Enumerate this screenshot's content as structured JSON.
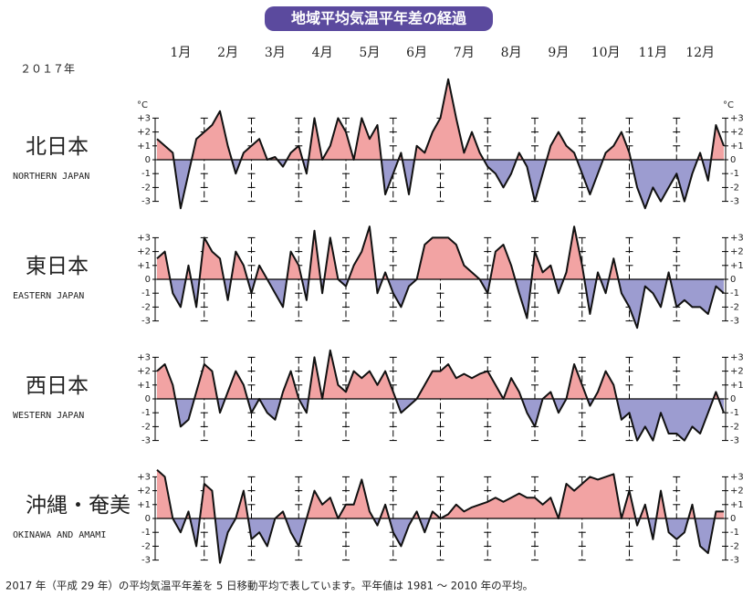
{
  "title": "地域平均気温平年差の経過",
  "year": "２０１７年",
  "months": [
    "1月",
    "2月",
    "3月",
    "4月",
    "5月",
    "6月",
    "7月",
    "8月",
    "9月",
    "10月",
    "11月",
    "12月"
  ],
  "unit": "°C",
  "note": "2017 年（平成 29 年）の平均気温平年差を 5 日移動平均で表しています。平年値は 1981 ～ 2010 年の平均。",
  "pos_color": "#f2a3a3",
  "neg_color": "#9c9cd0",
  "chart_data": [
    {
      "type": "area",
      "title": "北日本",
      "subtitle": "NORTHERN JAPAN",
      "values": [
        1.5,
        1,
        0.5,
        -3.5,
        -1,
        1.5,
        2,
        2.5,
        3.5,
        1,
        -1,
        0.5,
        1,
        1.5,
        0,
        0.2,
        -0.5,
        0.5,
        1,
        -1,
        3,
        0,
        1,
        3,
        2,
        0,
        3,
        1.5,
        2.5,
        -2.5,
        -1,
        0.5,
        -2.5,
        1,
        0.5,
        2,
        3,
        5.8,
        3,
        0.5,
        2,
        0.5,
        -0.5,
        -1,
        -2,
        -1,
        0.5,
        -0.5,
        -3,
        -1,
        1,
        2,
        1,
        0.5,
        -1,
        -2.5,
        -1,
        0.5,
        1,
        2,
        0.5,
        -2,
        -3.5,
        -2,
        -3,
        -2,
        -1,
        -3,
        -1,
        0.5,
        -1.5,
        2.5,
        1
      ],
      "ylim": [
        -3,
        3
      ],
      "yticks": [
        {
          "value": 3,
          "label": "+3"
        },
        {
          "value": 2,
          "label": "+2"
        },
        {
          "value": 1,
          "label": "+1"
        },
        0,
        -1,
        -2,
        -3
      ]
    },
    {
      "type": "area",
      "title": "東日本",
      "subtitle": "EASTERN JAPAN",
      "values": [
        1.5,
        2,
        -1,
        -2,
        1,
        -2,
        3,
        2,
        1.5,
        -1.5,
        2,
        1,
        -1,
        1,
        0,
        -1,
        -2,
        2,
        1,
        -1.5,
        3.5,
        -1,
        3,
        0,
        -0.5,
        1,
        2,
        3.8,
        -1,
        0.5,
        -1,
        -2,
        -0.5,
        0,
        2.5,
        3,
        3,
        3,
        2.5,
        1,
        0.5,
        0,
        -1,
        2,
        2.5,
        1,
        -1,
        -2.8,
        2,
        0.5,
        1,
        -1,
        0.5,
        3.8,
        1,
        -2.5,
        0.5,
        -1,
        1.5,
        -1,
        -2,
        -3.5,
        -0.5,
        -1,
        -2,
        0.5,
        -2,
        -1.5,
        -2,
        -2,
        -2.5,
        -0.5,
        -1
      ],
      "ylim": [
        -3,
        3
      ],
      "yticks": [
        {
          "value": 3,
          "label": "+3"
        },
        {
          "value": 2,
          "label": "+2"
        },
        {
          "value": 1,
          "label": "+1"
        },
        0,
        -1,
        -2,
        -3
      ]
    },
    {
      "type": "area",
      "title": "西日本",
      "subtitle": "WESTERN JAPAN",
      "values": [
        2,
        2.5,
        1,
        -2,
        -1.5,
        0.5,
        2.5,
        2,
        -1,
        0.5,
        2,
        1,
        -1,
        0,
        -1,
        -1.5,
        0.5,
        2,
        0,
        -1,
        3,
        0,
        3.5,
        1,
        0.5,
        2,
        1.5,
        2,
        1,
        2,
        0.5,
        -1,
        -0.5,
        0,
        1,
        2,
        2,
        2.5,
        1.5,
        1.8,
        1.5,
        1.8,
        2,
        1,
        0,
        1.5,
        0.5,
        -1,
        -2,
        0,
        0.5,
        -1,
        0,
        2.5,
        1,
        -0.5,
        0.5,
        2,
        1,
        -1.5,
        -1,
        -3,
        -2,
        -3,
        -1,
        -2.5,
        -2.5,
        -3,
        -2,
        -2.5,
        -1,
        0.5,
        -1
      ],
      "ylim": [
        -3,
        3
      ],
      "yticks": [
        {
          "value": 3,
          "label": "+3"
        },
        {
          "value": 2,
          "label": "+2"
        },
        {
          "value": 1,
          "label": "+1"
        },
        0,
        -1,
        -2,
        -3
      ]
    },
    {
      "type": "area",
      "title": "沖縄・奄美",
      "subtitle": "OKINAWA AND AMAMI",
      "values": [
        3.5,
        3,
        0,
        -1,
        0.5,
        -2,
        2.5,
        2,
        -3.2,
        -1,
        0,
        2,
        -1.5,
        -1,
        -2,
        0,
        0.5,
        -1,
        -2,
        0,
        2,
        1,
        1.5,
        0,
        1,
        1,
        2.8,
        0.5,
        -0.5,
        1,
        -1,
        -2,
        -0.5,
        0.5,
        -1,
        0.5,
        0,
        0.3,
        1,
        0.5,
        0.8,
        1,
        1.2,
        1.5,
        1.2,
        1.5,
        1.8,
        1.5,
        1.5,
        1,
        1.5,
        0,
        2.5,
        2,
        2.5,
        3,
        2.8,
        3,
        3.2,
        0,
        2,
        -0.5,
        1,
        -1.5,
        2,
        -1,
        -1.5,
        -1,
        1,
        -2,
        -2.5,
        0.5,
        0.5
      ],
      "ylim": [
        -3,
        3
      ],
      "yticks": [
        {
          "value": 3,
          "label": "+3"
        },
        {
          "value": 2,
          "label": "+2"
        },
        {
          "value": 1,
          "label": "+1"
        },
        0,
        -1,
        -2,
        -3
      ]
    }
  ]
}
